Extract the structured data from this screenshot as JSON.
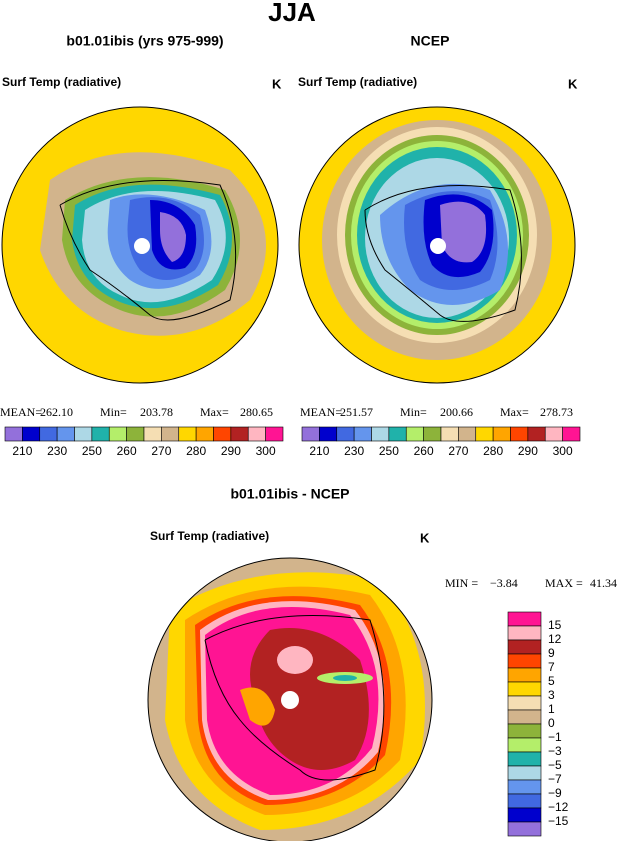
{
  "title": "JJA",
  "panels": [
    {
      "title": "b01.01ibis (yrs 975-999)",
      "variable": "Surf Temp (radiative)",
      "units": "K",
      "stats": [
        {
          "label": "MEAN=",
          "value": "262.10"
        },
        {
          "label": "Min=",
          "value": "203.78"
        },
        {
          "label": "Max=",
          "value": "280.65"
        }
      ]
    },
    {
      "title": "NCEP",
      "variable": "Surf Temp (radiative)",
      "units": "K",
      "stats": [
        {
          "label": "MEAN=",
          "value": "251.57"
        },
        {
          "label": "Min=",
          "value": "200.66"
        },
        {
          "label": "Max=",
          "value": "278.73"
        }
      ]
    }
  ],
  "colorbar": {
    "colors": [
      "#9370db",
      "#0000cd",
      "#4169e1",
      "#6495ed",
      "#add8e6",
      "#20b2aa",
      "#b4ee6a",
      "#8db33a",
      "#f5deb3",
      "#d2b48c",
      "#ffd700",
      "#ffa500",
      "#ff4500",
      "#b22222",
      "#ffb6c1",
      "#ff1493"
    ],
    "labels": [
      "210",
      "230",
      "250",
      "260",
      "270",
      "280",
      "290",
      "300"
    ]
  },
  "difference": {
    "title": "b01.01ibis - NCEP",
    "variable": "Surf Temp (radiative)",
    "units": "K",
    "stats": [
      {
        "label": "MIN =",
        "value": "−3.84"
      },
      {
        "label": "MAX =",
        "value": "41.34"
      }
    ],
    "colorbar": {
      "colors": [
        "#ff1493",
        "#ffb6c1",
        "#b22222",
        "#ff4500",
        "#ffa500",
        "#ffd700",
        "#f5deb3",
        "#d2b48c",
        "#8db33a",
        "#b4ee6a",
        "#20b2aa",
        "#add8e6",
        "#6495ed",
        "#4169e1",
        "#0000cd",
        "#9370db"
      ],
      "labels": [
        "15",
        "12",
        "9",
        "7",
        "5",
        "3",
        "1",
        "0",
        "−1",
        "−3",
        "−5",
        "−7",
        "−9",
        "−12",
        "−15"
      ]
    }
  }
}
